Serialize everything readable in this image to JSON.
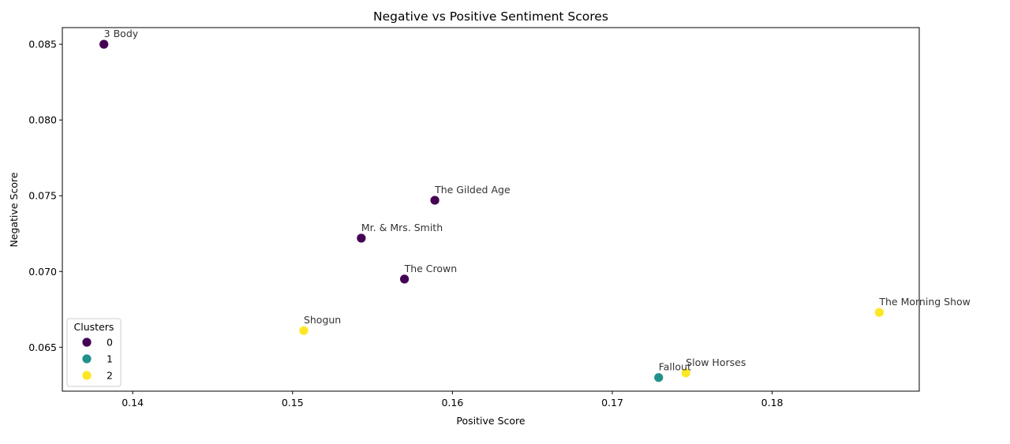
{
  "chart_data": {
    "type": "scatter",
    "title": "Negative vs Positive Sentiment Scores",
    "xlabel": "Positive Score",
    "ylabel": "Negative Score",
    "xlim": [
      0.1356,
      0.1892
    ],
    "ylim": [
      0.0621,
      0.0861
    ],
    "xticks": [
      0.14,
      0.15,
      0.16,
      0.17,
      0.18
    ],
    "xtick_labels": [
      "0.14",
      "0.15",
      "0.16",
      "0.17",
      "0.18"
    ],
    "yticks": [
      0.065,
      0.07,
      0.075,
      0.08,
      0.085
    ],
    "ytick_labels": [
      "0.065",
      "0.070",
      "0.075",
      "0.080",
      "0.085"
    ],
    "grid": false,
    "legend": {
      "title": "Clusters",
      "placement": "lower-left",
      "entries": [
        {
          "label": "0",
          "color": "#440154"
        },
        {
          "label": "1",
          "color": "#21918c"
        },
        {
          "label": "2",
          "color": "#fde725"
        }
      ]
    },
    "points": [
      {
        "label": "3 Body",
        "x": 0.1382,
        "y": 0.085,
        "cluster": 0
      },
      {
        "label": "The Gilded Age",
        "x": 0.1589,
        "y": 0.0747,
        "cluster": 0
      },
      {
        "label": "Mr. & Mrs. Smith",
        "x": 0.1543,
        "y": 0.0722,
        "cluster": 0
      },
      {
        "label": "The Crown",
        "x": 0.157,
        "y": 0.0695,
        "cluster": 0
      },
      {
        "label": "The Morning Show",
        "x": 0.1867,
        "y": 0.0673,
        "cluster": 2
      },
      {
        "label": "Shogun",
        "x": 0.1507,
        "y": 0.0661,
        "cluster": 2
      },
      {
        "label": "Slow Horses",
        "x": 0.1746,
        "y": 0.0633,
        "cluster": 2
      },
      {
        "label": "Fallout",
        "x": 0.1729,
        "y": 0.063,
        "cluster": 1
      }
    ]
  }
}
